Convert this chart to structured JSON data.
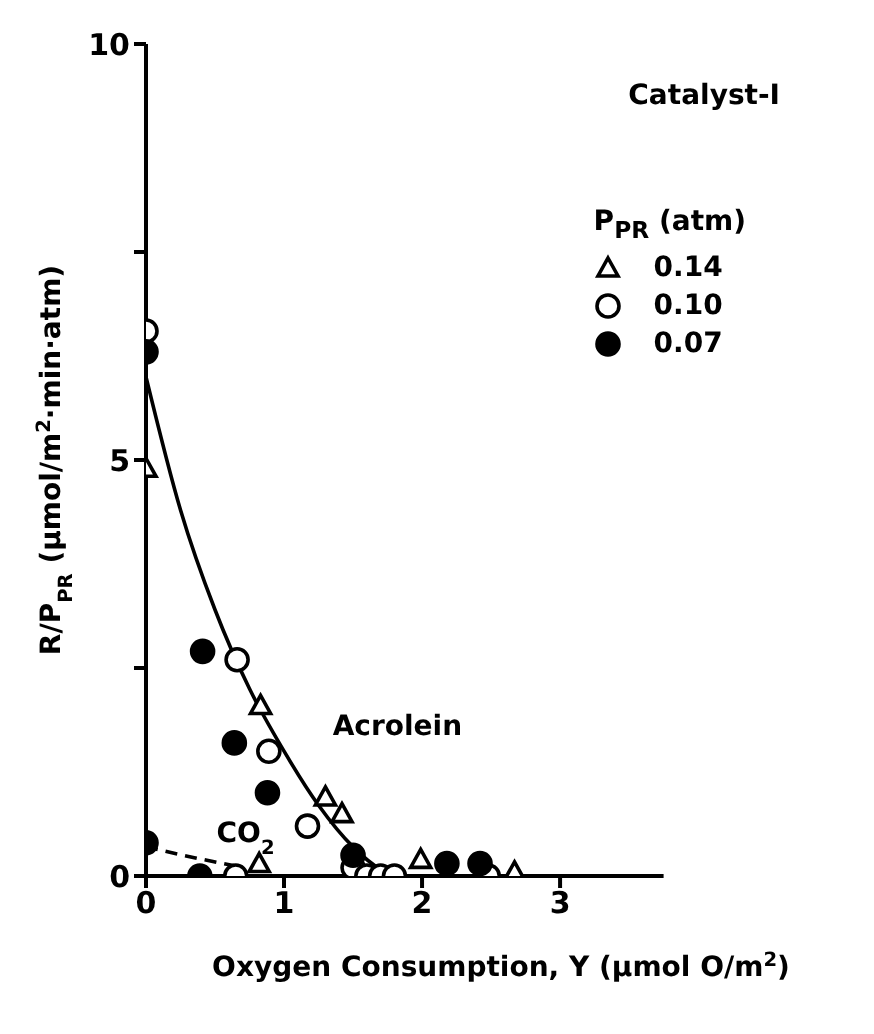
{
  "chart_data": {
    "type": "scatter",
    "title": "Catalyst-I",
    "xlabel": "Oxygen  Consumption, Y (μmol O/m$^{2}$)",
    "ylabel": "R/P$_{PR}$  (μmol/m$^{2}$·min·atm)",
    "legend_title": "P$_{PR}$ (atm)",
    "legend": "top right",
    "xlim": [
      0,
      3.75
    ],
    "xticks": [
      0,
      1,
      2,
      3
    ],
    "ylim": [
      0,
      10
    ],
    "yticks": [
      0,
      {
        "value": 2.5,
        "label": null
      },
      5,
      {
        "value": 7.5,
        "label": null
      },
      10
    ],
    "series": [
      {
        "name": "0.14",
        "color": "#ffffff",
        "marker": "triangle",
        "x": [
          0,
          0.83,
          1.3,
          1.42,
          1.99,
          2.67,
          0.82
        ],
        "values": [
          4.9,
          2.05,
          0.95,
          0.75,
          0.2,
          0.05,
          0.15
        ]
      },
      {
        "name": "0.10",
        "color": "#ffffff",
        "marker": "circle",
        "x": [
          0,
          0.66,
          0.89,
          1.17,
          1.5,
          1.6,
          1.7,
          1.8,
          2.48,
          0.65
        ],
        "values": [
          6.55,
          2.6,
          1.5,
          0.6,
          0.1,
          0,
          0,
          0,
          0,
          0
        ]
      },
      {
        "name": "0.07",
        "color": "#000000",
        "marker": "circle",
        "x": [
          0,
          0.41,
          0.64,
          0.88,
          1.5,
          2.18,
          2.42,
          0,
          0.39
        ],
        "values": [
          6.3,
          2.7,
          1.6,
          1.0,
          0.25,
          0.15,
          0.15,
          0.4,
          0
        ]
      },
      {
        "type": "line",
        "name": "Acrolein",
        "color": "#000000",
        "line_style": "solid",
        "x": [
          0,
          0.25,
          0.5,
          0.75,
          1.0,
          1.25,
          1.5,
          1.7,
          1.85
        ],
        "values": [
          6.0,
          4.4,
          3.2,
          2.25,
          1.5,
          0.85,
          0.35,
          0.08,
          0
        ]
      },
      {
        "type": "line",
        "name": "CO$_{2}$",
        "color": "#000000",
        "line_style": "dashed",
        "x": [
          0,
          0.35,
          0.65
        ],
        "values": [
          0.35,
          0.22,
          0.12
        ]
      }
    ]
  }
}
